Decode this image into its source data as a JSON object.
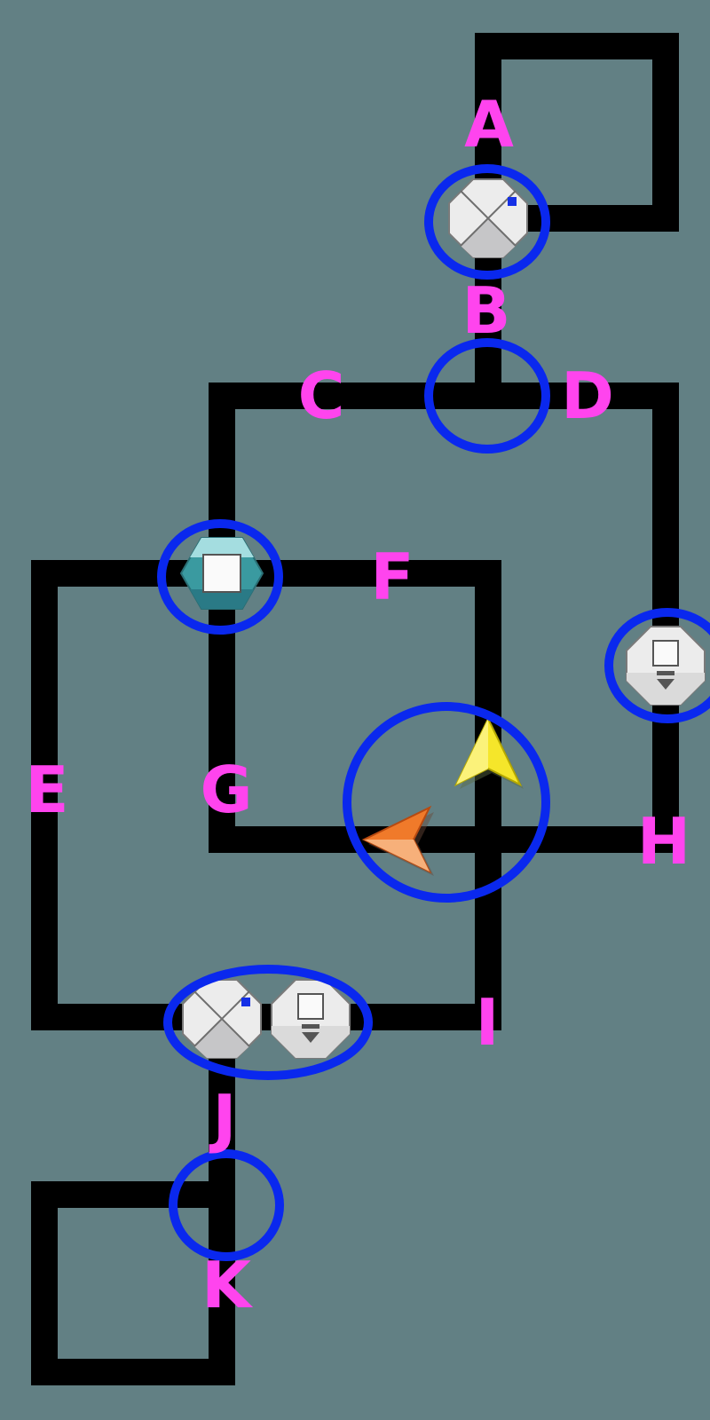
{
  "colors": {
    "background": "#628084",
    "track": "#000000",
    "label": "#ff44ee",
    "ring": "#0a28ee"
  },
  "labels": {
    "A": "A",
    "B": "B",
    "C": "C",
    "D": "D",
    "E": "E",
    "F": "F",
    "G": "G",
    "H": "H",
    "I": "I",
    "J": "J",
    "K": "K"
  },
  "pieces": [
    {
      "name": "switch-piece",
      "icon": "split-octagon-icon"
    },
    {
      "name": "teal-hexagon-piece",
      "icon": "hexagon-square-icon"
    },
    {
      "name": "exit-piece",
      "icon": "octagon-arrow-down-icon"
    },
    {
      "name": "yellow-arrow-piece",
      "icon": "arrow-up-icon",
      "color": "#f5e62a"
    },
    {
      "name": "orange-arrow-piece",
      "icon": "arrow-left-icon",
      "color": "#f07a2a"
    }
  ]
}
